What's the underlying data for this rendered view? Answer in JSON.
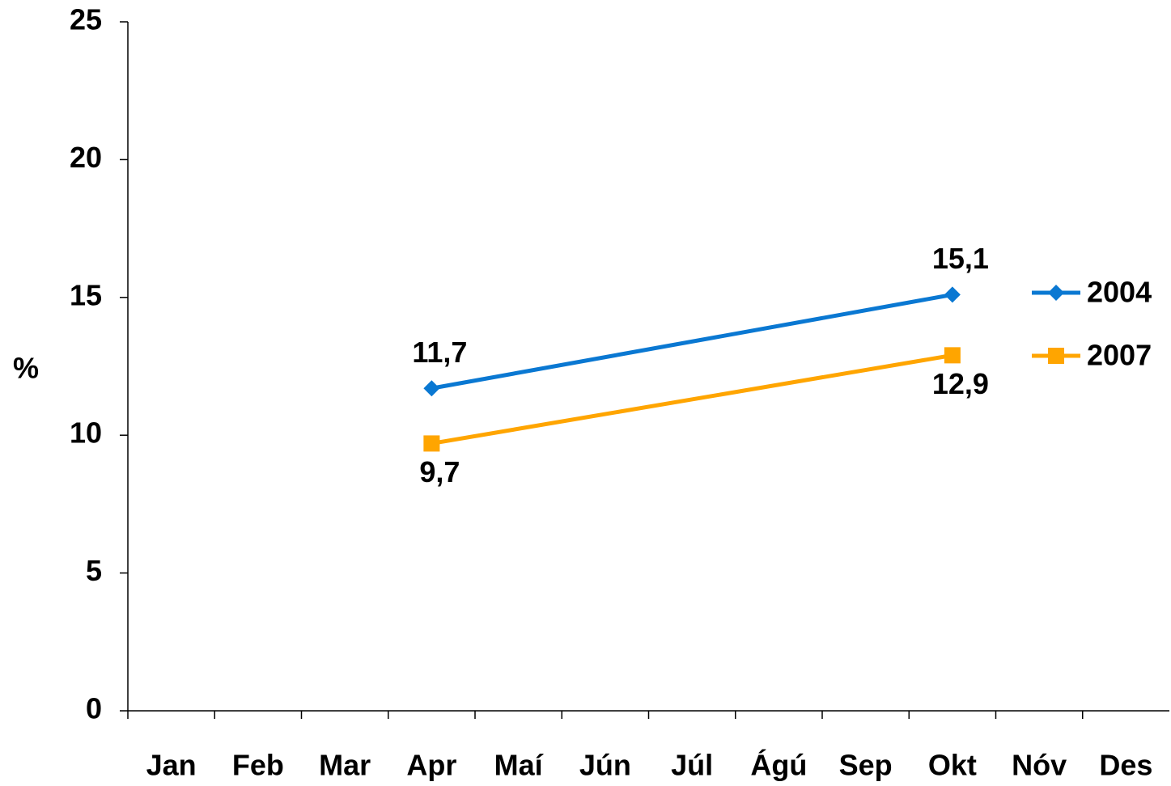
{
  "chart_data": {
    "type": "line",
    "y_label": "%",
    "categories": [
      "Jan",
      "Feb",
      "Mar",
      "Apr",
      "Maí",
      "Jún",
      "Júl",
      "Ágú",
      "Sep",
      "Okt",
      "Nóv",
      "Des"
    ],
    "series": [
      {
        "name": "2004",
        "color": "#0a78d2",
        "marker": "diamond",
        "values": [
          null,
          null,
          null,
          11.7,
          null,
          null,
          null,
          null,
          null,
          15.1,
          null,
          null
        ],
        "value_labels": [
          null,
          null,
          null,
          "11,7",
          null,
          null,
          null,
          null,
          null,
          "15,1",
          null,
          null
        ]
      },
      {
        "name": "2007",
        "color": "#ffa500",
        "marker": "square",
        "values": [
          null,
          null,
          null,
          9.7,
          null,
          null,
          null,
          null,
          null,
          12.9,
          null,
          null
        ],
        "value_labels": [
          null,
          null,
          null,
          "9,7",
          null,
          null,
          null,
          null,
          null,
          "12,9",
          null,
          null
        ]
      }
    ],
    "connect_gaps": true,
    "ylim": [
      0,
      25
    ],
    "yticks": [
      0,
      5,
      10,
      15,
      20,
      25
    ],
    "grid": false,
    "legend": "right"
  }
}
